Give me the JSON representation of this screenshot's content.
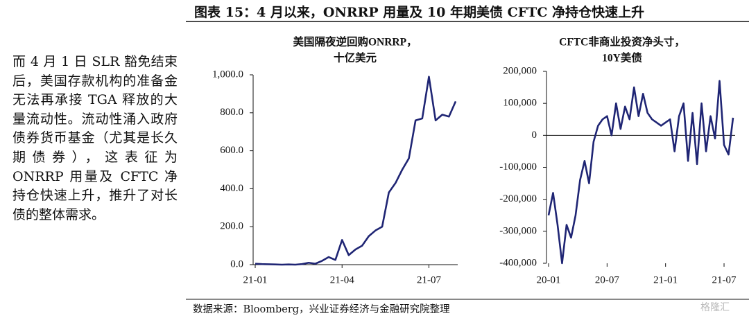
{
  "paragraph": "而 4 月 1 日 SLR 豁免结束后，美国存款机构的准备金无法再承接 TGA 释放的大量流动性。流动性涌入政府债券货币基金（尤其是长久期债券），这表征为 ONRRP 用量及 CFTC 净持仓快速上升，推升了对长债的整体需求。",
  "figure_title": "图表 15：4 月以来，ONRRP 用量及 10 年期美债 CFTC 净持仓快速上升",
  "source": "数据来源：Bloomberg，兴业证券经济与金融研究院整理",
  "watermark": "格隆汇",
  "chart_data": [
    {
      "type": "line",
      "title": [
        "美国隔夜逆回购ONRRP，",
        "十亿美元"
      ],
      "categories": [
        "21-01",
        null,
        null,
        null,
        null,
        null,
        null,
        null,
        null,
        null,
        null,
        null,
        null,
        "21-04",
        null,
        null,
        null,
        null,
        null,
        null,
        null,
        null,
        null,
        null,
        null,
        null,
        "21-07",
        null,
        null,
        null,
        null
      ],
      "series": [
        {
          "name": "ONRRP",
          "color": "#1f2574",
          "values": [
            5,
            3,
            2,
            1,
            0,
            1,
            0,
            3,
            10,
            5,
            20,
            40,
            25,
            130,
            50,
            80,
            100,
            150,
            180,
            200,
            380,
            430,
            500,
            560,
            760,
            770,
            990,
            760,
            790,
            780,
            860
          ]
        }
      ],
      "ylim": [
        0,
        1000
      ],
      "yticks": [
        {
          "value": 0,
          "label": "0.0"
        },
        {
          "value": 200,
          "label": "200.0"
        },
        {
          "value": 400,
          "label": "400.0"
        },
        {
          "value": 600,
          "label": "600.0"
        },
        {
          "value": 800,
          "label": "800.0"
        },
        {
          "value": 1000,
          "label": "1,000.0"
        }
      ]
    },
    {
      "type": "line",
      "title": [
        "CFTC非商业投资净头寸，",
        "10Y美债"
      ],
      "categories": [
        "20-01",
        null,
        null,
        null,
        null,
        null,
        null,
        null,
        null,
        null,
        null,
        null,
        null,
        "20-07",
        null,
        null,
        null,
        null,
        null,
        null,
        null,
        null,
        null,
        null,
        null,
        null,
        "21-01",
        null,
        null,
        null,
        null,
        null,
        null,
        null,
        null,
        null,
        null,
        null,
        null,
        "21-07",
        null,
        null
      ],
      "series": [
        {
          "name": "CFTC",
          "color": "#1f2574",
          "values": [
            -250000,
            -180000,
            -280000,
            -400000,
            -280000,
            -320000,
            -250000,
            -140000,
            -80000,
            -150000,
            -20000,
            30000,
            50000,
            60000,
            0,
            100000,
            20000,
            90000,
            50000,
            150000,
            60000,
            130000,
            70000,
            50000,
            40000,
            30000,
            40000,
            50000,
            -50000,
            60000,
            100000,
            -80000,
            70000,
            -90000,
            100000,
            -50000,
            60000,
            -10000,
            170000,
            -30000,
            -60000,
            55000
          ]
        }
      ],
      "ylim": [
        -400000,
        200000
      ],
      "yticks": [
        {
          "value": -400000,
          "label": "-400,000"
        },
        {
          "value": -300000,
          "label": "-300,000"
        },
        {
          "value": -200000,
          "label": "-200,000"
        },
        {
          "value": -100000,
          "label": "-100,000"
        },
        0,
        {
          "value": 100000,
          "label": "100,000"
        },
        {
          "value": 200000,
          "label": "200,000"
        }
      ]
    }
  ]
}
